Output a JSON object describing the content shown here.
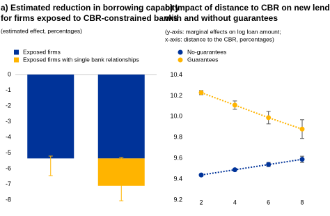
{
  "chart_data": [
    {
      "type": "bar",
      "title": [
        "a) Estimated reduction in borrowing capacity",
        "for firms exposed to CBR-constrained banks"
      ],
      "subtitle": "(estimated effect, percentages)",
      "categories": [
        null,
        null
      ],
      "stacked": true,
      "series": [
        {
          "name": "Exposed firms",
          "color": "#003399",
          "values": [
            -5.35,
            -5.35
          ]
        },
        {
          "name": "Exposed firms with single bank relationships",
          "color": "#ffb400",
          "values": [
            null,
            -1.75
          ]
        }
      ],
      "whiskers": [
        [
          -5.2,
          -6.45
        ],
        [
          -5.3,
          -8.05
        ]
      ],
      "whisker_color": "#ffb400",
      "ylim": [
        -8.4,
        0.31
      ],
      "yticks": [
        0,
        -1,
        -2,
        -3,
        -4,
        -5,
        -6,
        -7,
        -8
      ]
    },
    {
      "type": "line",
      "title": [
        "b) Impact of distance to CBR on new lending",
        "with and without guarantees"
      ],
      "subtitle": [
        "(y-axis: marginal effects on log loan amount;",
        "x-axis: distance to the CBR, percentages)"
      ],
      "x": [
        2,
        4,
        6,
        8
      ],
      "series": [
        {
          "name": "No-guarantees",
          "color": "#003399",
          "values": [
            9.44,
            9.49,
            9.54,
            9.59
          ],
          "errors": [
            0.01,
            0.01,
            0.02,
            0.03
          ]
        },
        {
          "name": "Guarantees",
          "color": "#ffb400",
          "values": [
            10.23,
            10.11,
            9.99,
            9.88
          ],
          "errors": [
            0.02,
            0.04,
            0.06,
            0.09
          ]
        }
      ],
      "xlim": [
        1.13,
        9.49
      ],
      "xticks": [
        2,
        4,
        6,
        8
      ],
      "ylim": [
        9.14,
        10.45
      ],
      "yticks": [
        9.2,
        9.4,
        9.6,
        9.8,
        {
          "value": 10,
          "label": "10.0"
        },
        10.2,
        10.4
      ]
    }
  ]
}
